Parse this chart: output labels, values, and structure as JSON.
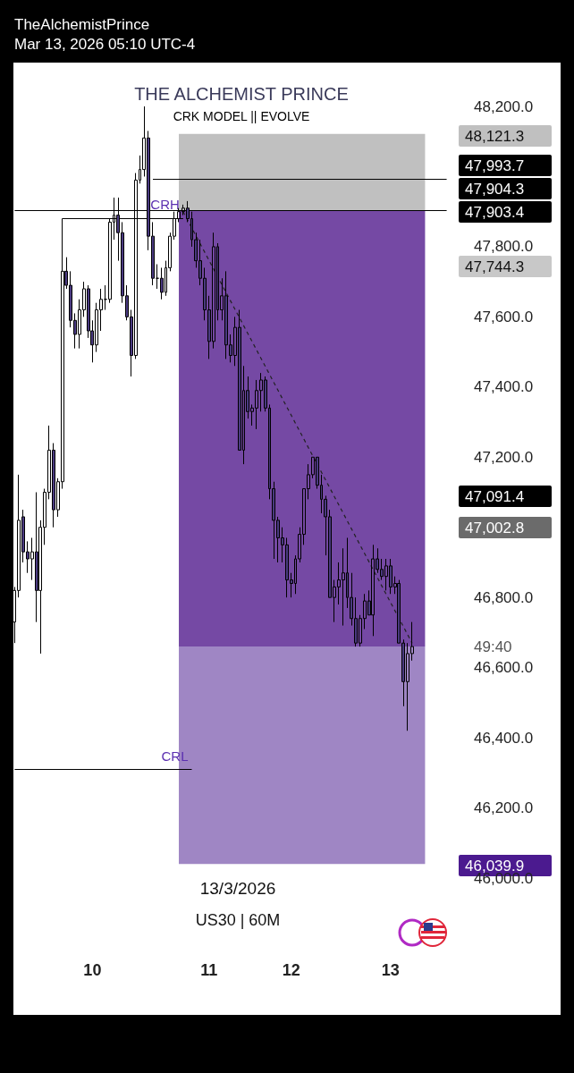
{
  "chart_data": {
    "type": "candlestick",
    "title": "THE ALCHEMIST PRINCE",
    "subtitle": "CRK MODEL || EVOLVE",
    "categories": [
      null,
      null,
      null,
      null,
      null,
      null,
      null,
      null,
      null,
      null,
      null,
      null,
      null,
      null,
      null,
      null,
      null,
      null,
      "10",
      null,
      null,
      null,
      null,
      null,
      null,
      null,
      null,
      null,
      null,
      null,
      null,
      null,
      null,
      null,
      null,
      null,
      null,
      null,
      null,
      null,
      null,
      null,
      null,
      null,
      null,
      "11",
      null,
      null,
      null,
      null,
      null,
      null,
      null,
      null,
      null,
      null,
      null,
      null,
      null,
      null,
      null,
      null,
      null,
      null,
      "12",
      null,
      null,
      null,
      null,
      null,
      null,
      null,
      null,
      null,
      null,
      null,
      null,
      null,
      null,
      null,
      null,
      null,
      null,
      null,
      null,
      null,
      null,
      "13",
      null,
      null,
      null,
      null,
      null
    ],
    "ohlc": [
      [
        46730,
        46830,
        46670,
        46820
      ],
      [
        46820,
        47150,
        46800,
        47020
      ],
      [
        47030,
        47050,
        46900,
        46930
      ],
      [
        46930,
        46960,
        46870,
        46910
      ],
      [
        46910,
        46970,
        46850,
        46930
      ],
      [
        46930,
        47100,
        46730,
        46820
      ],
      [
        46820,
        47020,
        46640,
        47000
      ],
      [
        47000,
        47110,
        46950,
        47100
      ],
      [
        47100,
        47290,
        47080,
        47220
      ],
      [
        47220,
        47240,
        47000,
        47050
      ],
      [
        47050,
        47140,
        47030,
        47130
      ],
      [
        47130,
        47880,
        47110,
        47730
      ],
      [
        47730,
        47770,
        47680,
        47690
      ],
      [
        47690,
        47730,
        47570,
        47590
      ],
      [
        47590,
        47610,
        47510,
        47550
      ],
      [
        47550,
        47650,
        47510,
        47620
      ],
      [
        47620,
        47700,
        47600,
        47680
      ],
      [
        47680,
        47690,
        47540,
        47560
      ],
      [
        47560,
        47590,
        47470,
        47520
      ],
      [
        47520,
        47640,
        47500,
        47620
      ],
      [
        47620,
        47680,
        47560,
        47650
      ],
      [
        47650,
        47690,
        47620,
        47650
      ],
      [
        47650,
        47880,
        47640,
        47870
      ],
      [
        47870,
        47940,
        47820,
        47890
      ],
      [
        47890,
        47940,
        47760,
        47840
      ],
      [
        47840,
        47870,
        47640,
        47660
      ],
      [
        47660,
        47690,
        47590,
        47600
      ],
      [
        47600,
        47620,
        47430,
        47490
      ],
      [
        47490,
        48010,
        47480,
        47990
      ],
      [
        47990,
        48060,
        47980,
        48020
      ],
      [
        48020,
        48200,
        48000,
        48110
      ],
      [
        48110,
        48130,
        47790,
        47830
      ],
      [
        47830,
        47870,
        47690,
        47710
      ],
      [
        47710,
        47750,
        47680,
        47710
      ],
      [
        47710,
        47740,
        47650,
        47670
      ],
      [
        47670,
        47760,
        47660,
        47740
      ],
      [
        47740,
        47840,
        47730,
        47830
      ],
      [
        47830,
        47900,
        47820,
        47880
      ],
      [
        47880,
        47910,
        47870,
        47900
      ],
      [
        47900,
        47920,
        47890,
        47910
      ],
      [
        47910,
        47930,
        47870,
        47880
      ],
      [
        47880,
        47900,
        47800,
        47820
      ],
      [
        47820,
        47840,
        47740,
        47760
      ],
      [
        47760,
        47820,
        47690,
        47710
      ],
      [
        47710,
        47740,
        47590,
        47620
      ],
      [
        47620,
        47660,
        47480,
        47530
      ],
      [
        47530,
        47840,
        47510,
        47800
      ],
      [
        47800,
        47810,
        47590,
        47620
      ],
      [
        47620,
        47710,
        47590,
        47660
      ],
      [
        47660,
        47730,
        47480,
        47520
      ],
      [
        47520,
        47550,
        47470,
        47490
      ],
      [
        47490,
        47600,
        47460,
        47570
      ],
      [
        47570,
        47620,
        47220,
        47220
      ],
      [
        47220,
        47460,
        47180,
        47390
      ],
      [
        47390,
        47430,
        47310,
        47330
      ],
      [
        47330,
        47350,
        47290,
        47340
      ],
      [
        47340,
        47420,
        47280,
        47390
      ],
      [
        47390,
        47440,
        47330,
        47420
      ],
      [
        47420,
        47430,
        47330,
        47340
      ],
      [
        47340,
        47350,
        47080,
        47110
      ],
      [
        47110,
        47130,
        46910,
        47020
      ],
      [
        47020,
        47030,
        46900,
        46970
      ],
      [
        46970,
        47000,
        46900,
        46950
      ],
      [
        46950,
        46970,
        46800,
        46850
      ],
      [
        46850,
        46870,
        46800,
        46840
      ],
      [
        46840,
        46920,
        46810,
        46910
      ],
      [
        46910,
        47000,
        46900,
        46980
      ],
      [
        46980,
        47110,
        46950,
        47110
      ],
      [
        47110,
        47180,
        47080,
        47150
      ],
      [
        47150,
        47200,
        47140,
        47200
      ],
      [
        47200,
        47200,
        47110,
        47120
      ],
      [
        47120,
        47150,
        47040,
        47080
      ],
      [
        47080,
        47090,
        46920,
        47030
      ],
      [
        47030,
        47050,
        46800,
        46800
      ],
      [
        46800,
        46850,
        46730,
        46830
      ],
      [
        46830,
        46900,
        46780,
        46850
      ],
      [
        46850,
        46940,
        46720,
        46870
      ],
      [
        46870,
        46970,
        46770,
        46800
      ],
      [
        46800,
        46870,
        46720,
        46740
      ],
      [
        46740,
        46800,
        46660,
        46670
      ],
      [
        46670,
        46750,
        46660,
        46740
      ],
      [
        46740,
        46810,
        46710,
        46790
      ],
      [
        46790,
        46820,
        46750,
        46750
      ],
      [
        46750,
        46950,
        46690,
        46910
      ],
      [
        46910,
        46940,
        46870,
        46880
      ],
      [
        46880,
        46910,
        46850,
        46860
      ],
      [
        46860,
        46910,
        46820,
        46890
      ],
      [
        46890,
        46910,
        46810,
        46830
      ],
      [
        46830,
        46860,
        46810,
        46840
      ],
      [
        46840,
        46850,
        46670,
        46670
      ],
      [
        46670,
        46680,
        46490,
        46560
      ],
      [
        46560,
        46670,
        46420,
        46640
      ],
      [
        46640,
        46730,
        46620,
        46660
      ]
    ],
    "ylim": [
      46000,
      48200
    ],
    "yticks": [
      {
        "value": 46000,
        "label": "46,000.0"
      },
      {
        "value": 46200,
        "label": "46,200.0"
      },
      {
        "value": 46400,
        "label": "46,400.0"
      },
      {
        "value": 46600,
        "label": "46,600.0"
      },
      {
        "value": 46800,
        "label": "46,800.0"
      },
      {
        "value": 47200,
        "label": "47,200.0"
      },
      {
        "value": 47400,
        "label": "47,400.0"
      },
      {
        "value": 47600,
        "label": "47,600.0"
      },
      {
        "value": 47800,
        "label": "47,800.0"
      },
      {
        "value": 48200,
        "label": "48,200.0"
      }
    ],
    "bands": [
      {
        "axis": "y",
        "from": 47904.3,
        "to": 48121.3,
        "color": "#c0c0c0"
      },
      {
        "axis": "y",
        "from": 46660,
        "to": 47904.3,
        "color": "#7549a4"
      },
      {
        "axis": "y",
        "from": 46039.9,
        "to": 46660,
        "color": "#9f86c4"
      }
    ],
    "ref_lines": [
      {
        "axis": "y",
        "value": 47993.7,
        "label": "47,993.7",
        "color": "#000000"
      },
      {
        "axis": "y",
        "value": 47903.4,
        "label": "47,903.4",
        "color": "#000000"
      },
      {
        "axis": "y",
        "value": 47880,
        "label": "CRH",
        "color": "#000000"
      },
      {
        "axis": "y",
        "value": 46310,
        "label": "CRL",
        "color": "#000000"
      }
    ],
    "series": [
      {
        "type": "line",
        "color": "#222222",
        "line_style": "dashed",
        "marker": "none",
        "values": [
          null,
          null,
          null,
          null,
          null,
          null,
          null,
          null,
          null,
          null,
          null,
          null,
          null,
          null,
          null,
          null,
          null,
          null,
          null,
          null,
          null,
          null,
          null,
          null,
          null,
          null,
          null,
          null,
          null,
          null,
          null,
          null,
          null,
          null,
          null,
          null,
          null,
          null,
          null,
          47900,
          null,
          null,
          null,
          null,
          null,
          null,
          null,
          null,
          null,
          null,
          null,
          null,
          null,
          null,
          null,
          null,
          null,
          null,
          null,
          null,
          null,
          null,
          null,
          null,
          null,
          null,
          null,
          null,
          null,
          null,
          null,
          null,
          null,
          null,
          null,
          null,
          null,
          null,
          null,
          null,
          null,
          null,
          null,
          null,
          null,
          null,
          null,
          null,
          null,
          null,
          null,
          null,
          46670
        ]
      }
    ],
    "annotations": [
      "TheAlchemistPrince",
      "Mar 13, 2026 05:10 UTC-4",
      "13/3/2026",
      "US30 | 60M",
      "49:40",
      "48,121.3",
      "47,904.3",
      "47,744.3",
      "47,091.4",
      "47,002.8",
      "46,039.9"
    ]
  }
}
